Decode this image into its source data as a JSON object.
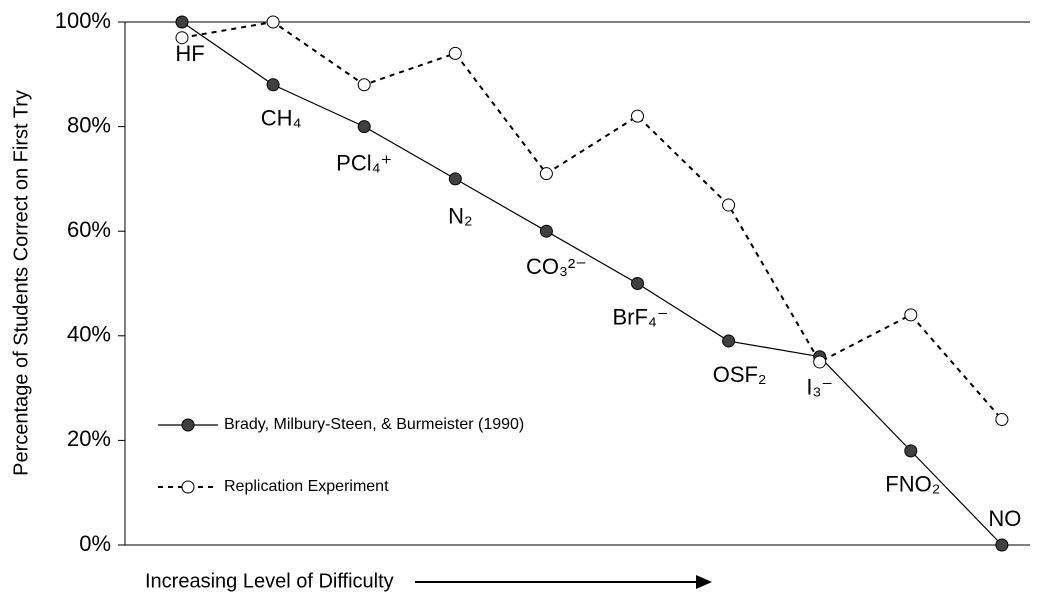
{
  "chart_data": {
    "type": "line",
    "ylabel": "Percentage of Students Correct on First Try",
    "xlabel": "Increasing Level of Difficulty",
    "categories": [
      "HF",
      "CH₄",
      "PCl₄⁺",
      "N₂",
      "CO₃²⁻",
      "BrF₄⁻",
      "OSF₂",
      "I₃⁻",
      "FNO₂",
      "NO"
    ],
    "series": [
      {
        "name": "Brady, Milbury-Steen, & Burmeister (1990)",
        "color": "#000000",
        "marker_fill": "#404040",
        "dashed": false,
        "values": [
          100,
          88,
          80,
          70,
          60,
          50,
          39,
          36,
          18,
          0
        ]
      },
      {
        "name": "Replication Experiment",
        "color": "#000000",
        "marker_fill": "#ffffff",
        "dashed": true,
        "values": [
          97,
          100,
          88,
          94,
          71,
          82,
          65,
          35,
          44,
          24
        ]
      }
    ],
    "ylim": [
      0,
      100
    ],
    "yticks": [
      {
        "value": 0,
        "label": "0%"
      },
      {
        "value": 20,
        "label": "20%"
      },
      {
        "value": 40,
        "label": "40%"
      },
      {
        "value": 60,
        "label": "60%"
      },
      {
        "value": 80,
        "label": "80%"
      },
      {
        "value": 100,
        "label": "100%"
      }
    ],
    "legend": "lower left"
  }
}
